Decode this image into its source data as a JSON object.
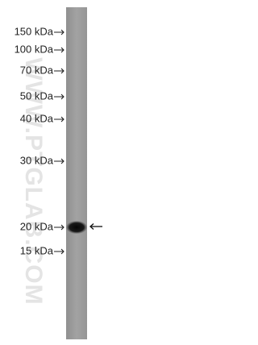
{
  "markers": [
    "150 kDa",
    "100 kDa",
    "70 kDa",
    "50 kDa",
    "40 kDa",
    "30 kDa",
    "20 kDa",
    "15 kDa"
  ],
  "watermark": "WWW.PTGLAB.COM"
}
